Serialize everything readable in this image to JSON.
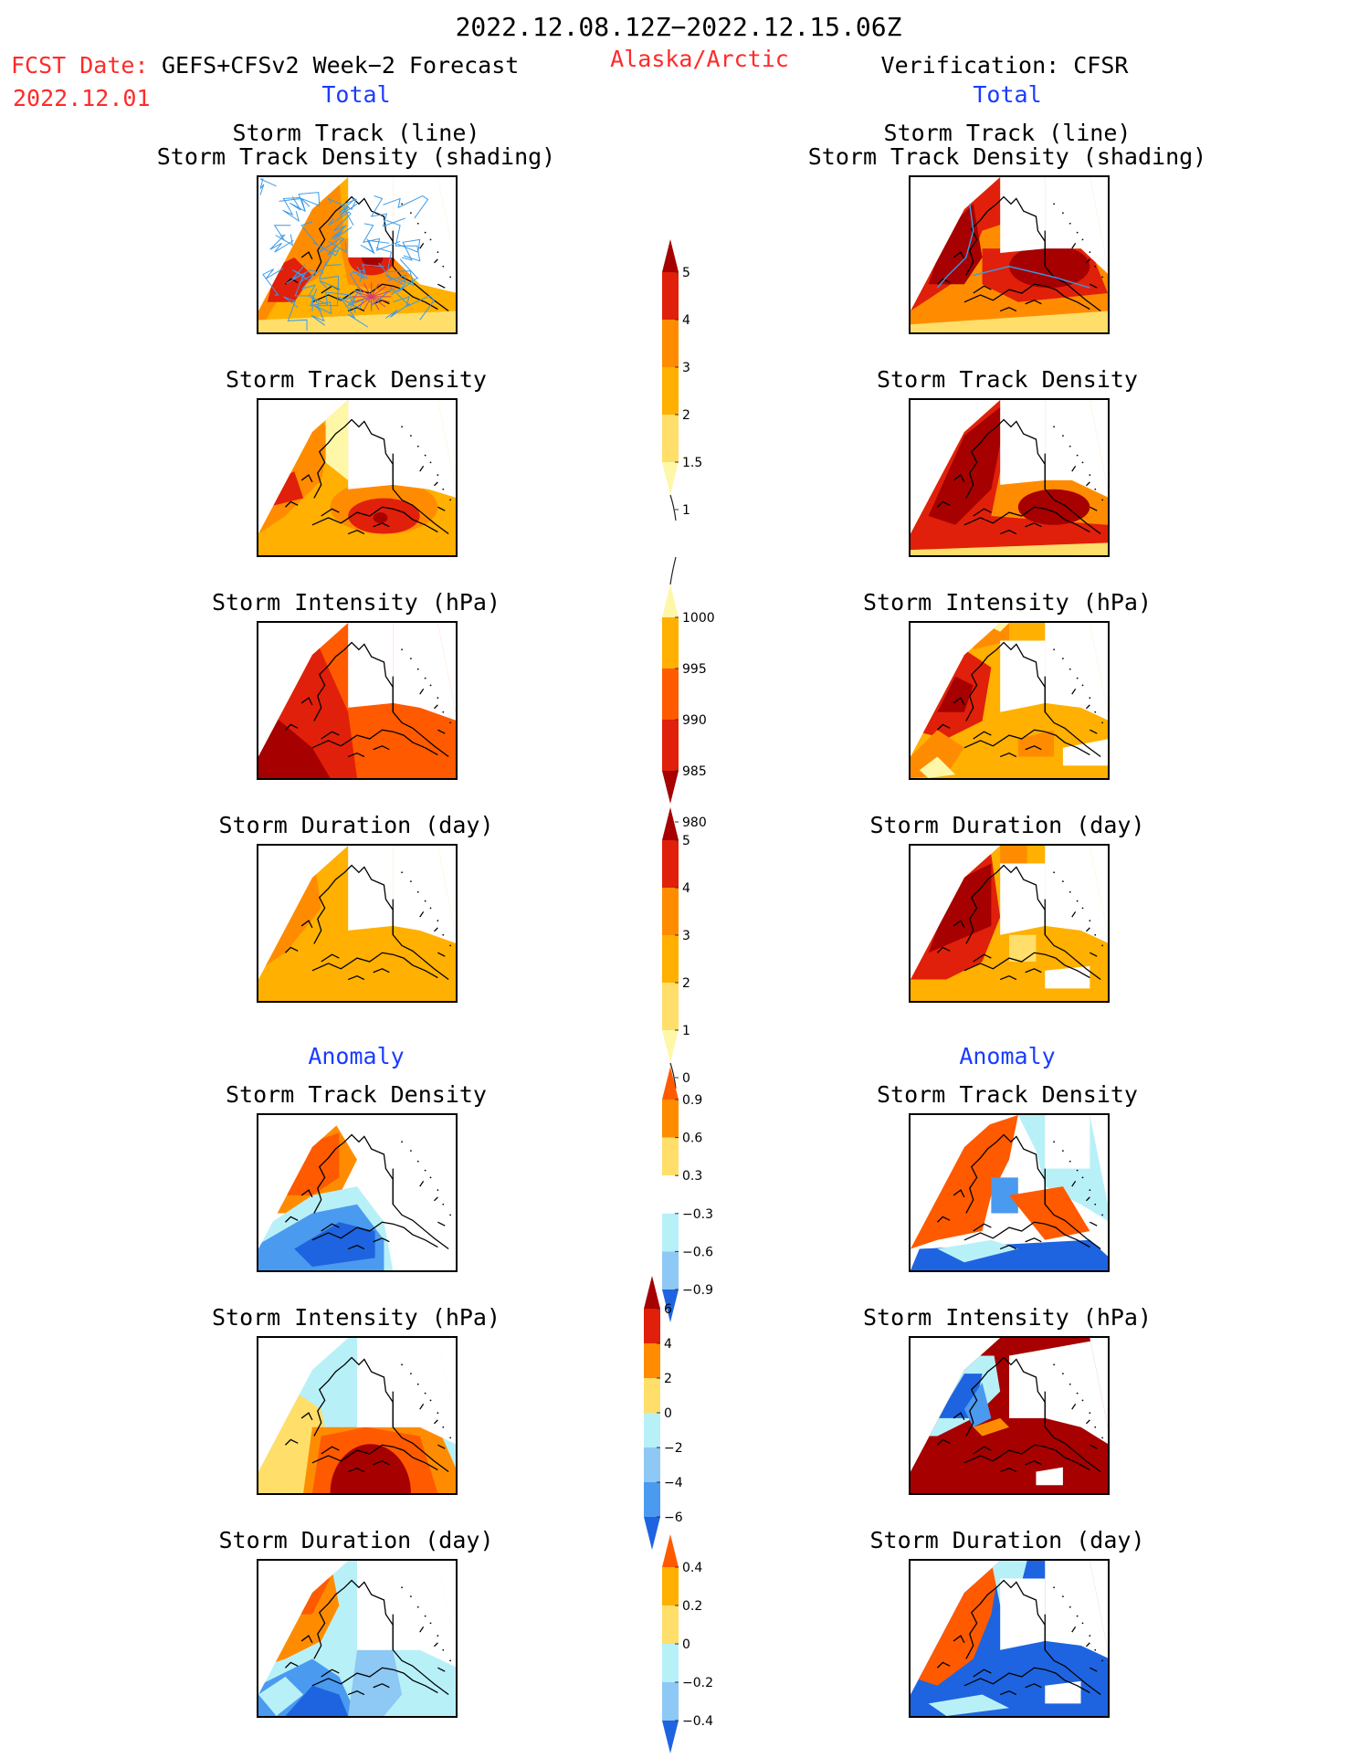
{
  "header": {
    "period": "2022.12.08.12Z−2022.12.15.06Z",
    "fcst_label": "FCST Date:",
    "fcst_model": "GEFS+CFSv2 Week−2 Forecast",
    "fcst_date": "2022.12.01",
    "region": "Alaska/Arctic",
    "verification": "Verification: CFSR"
  },
  "sections": {
    "total_left": "Total",
    "total_right": "Total",
    "anomaly_left": "Anomaly",
    "anomaly_right": "Anomaly"
  },
  "titles": {
    "track_line": "Storm Track (line)",
    "track_density_shading": "Storm Track Density (shading)",
    "density": "Storm Track Density",
    "intensity": "Storm Intensity (hPa)",
    "duration": "Storm Duration (day)"
  },
  "colors": {
    "pale_yellow": "#fff7a8",
    "light_yellow": "#ffde6a",
    "orange_light": "#ffb000",
    "orange": "#ff8c00",
    "orange_red": "#ff5a00",
    "red": "#e0200a",
    "dark_red": "#a60000",
    "white": "#ffffff",
    "light_cyan": "#b8f0f8",
    "light_blue": "#8ec8f4",
    "mid_blue": "#4a9af0",
    "blue": "#1e64e0",
    "track_line": "#3a9ae8"
  },
  "chart_data": [
    {
      "type": "heatmap",
      "name": "Storm Track Density colorbar",
      "levels": [
        "1",
        "1.5",
        "2",
        "3",
        "4",
        "5"
      ],
      "colors": [
        "#fff7a8",
        "#ffde6a",
        "#ffb000",
        "#ff8c00",
        "#e0200a",
        "#a60000"
      ]
    },
    {
      "type": "heatmap",
      "name": "Storm Intensity colorbar",
      "levels": [
        "1000",
        "995",
        "990",
        "985",
        "980"
      ],
      "colors": [
        "#fff7a8",
        "#ffb000",
        "#ff5a00",
        "#e0200a",
        "#a60000"
      ]
    },
    {
      "type": "heatmap",
      "name": "Storm Duration colorbar",
      "levels": [
        "5",
        "4",
        "3",
        "2",
        "1",
        "0"
      ],
      "colors": [
        "#a60000",
        "#e0200a",
        "#ff8c00",
        "#ffb000",
        "#ffde6a",
        "#fff7a8"
      ]
    },
    {
      "type": "heatmap",
      "name": "Density anomaly colorbar",
      "levels": [
        "0.9",
        "0.6",
        "0.3",
        "−0.3",
        "−0.6",
        "−0.9"
      ],
      "colors": [
        "#ff5a00",
        "#ff8c00",
        "#ffde6a",
        "#ffffff",
        "#b8f0f8",
        "#8ec8f4",
        "#1e64e0"
      ]
    },
    {
      "type": "heatmap",
      "name": "Intensity anomaly colorbar",
      "levels": [
        "6",
        "4",
        "2",
        "0",
        "−2",
        "−4",
        "−6"
      ],
      "colors": [
        "#a60000",
        "#e0200a",
        "#ff8c00",
        "#ffde6a",
        "#b8f0f8",
        "#8ec8f4",
        "#4a9af0",
        "#1e64e0"
      ]
    },
    {
      "type": "heatmap",
      "name": "Duration anomaly colorbar",
      "levels": [
        "0.4",
        "0.2",
        "0",
        "−0.2",
        "−0.4"
      ],
      "colors": [
        "#ff5a00",
        "#ffb000",
        "#ffde6a",
        "#b8f0f8",
        "#8ec8f4",
        "#1e64e0"
      ]
    }
  ]
}
